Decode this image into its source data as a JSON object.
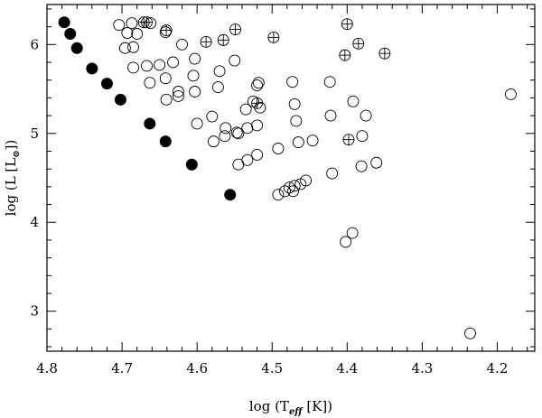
{
  "chart_data": {
    "type": "scatter",
    "xlabel": {
      "main": "log (T",
      "sub": "eff",
      "post": " [K])"
    },
    "ylabel": {
      "main": "log (L [L",
      "sub": "⊙",
      "post": "])"
    },
    "xlim": [
      4.8,
      4.15
    ],
    "ylim": [
      2.55,
      6.45
    ],
    "x_ticks": [
      4.8,
      4.7,
      4.6,
      4.5,
      4.4,
      4.3,
      4.2
    ],
    "x_tick_labels": [
      "4.8",
      "4.7",
      "4.6",
      "4.5",
      "4.4",
      "4.3",
      "4.2"
    ],
    "y_ticks": [
      3,
      4,
      5,
      6
    ],
    "y_tick_labels": [
      "3",
      "4",
      "5",
      "6"
    ],
    "grid": false,
    "series": [
      {
        "marker": "filled-circle",
        "x": [
          4.777,
          4.769,
          4.76,
          4.74,
          4.72,
          4.702,
          4.663,
          4.642,
          4.607,
          4.556
        ],
        "y": [
          6.25,
          6.12,
          5.96,
          5.73,
          5.56,
          5.38,
          5.11,
          4.91,
          4.65,
          4.31
        ]
      },
      {
        "marker": "open-circle",
        "x": [
          4.687,
          4.68,
          4.696,
          4.685,
          4.704,
          4.693,
          4.662,
          4.642,
          4.62,
          4.685,
          4.667,
          4.65,
          4.632,
          4.603,
          4.663,
          4.642,
          4.625,
          4.605,
          4.641,
          4.625,
          4.603,
          4.57,
          4.55,
          4.572,
          4.58,
          4.563,
          4.547,
          4.535,
          4.525,
          4.52,
          4.518,
          4.516,
          4.6,
          4.578,
          4.562,
          4.545,
          4.533,
          4.52,
          4.545,
          4.533,
          4.52,
          4.473,
          4.47,
          4.468,
          4.465,
          4.446,
          4.423,
          4.422,
          4.38,
          4.375,
          4.392,
          4.361,
          4.492,
          4.483,
          4.477,
          4.47,
          4.462,
          4.455,
          4.492,
          4.472,
          4.42,
          4.402,
          4.393,
          4.381,
          4.236,
          4.182
        ],
        "y": [
          6.24,
          6.12,
          5.96,
          5.97,
          6.22,
          6.13,
          6.24,
          6.14,
          6.0,
          5.74,
          5.76,
          5.77,
          5.8,
          5.84,
          5.57,
          5.62,
          5.47,
          5.65,
          5.38,
          5.42,
          5.47,
          5.7,
          5.82,
          5.52,
          5.19,
          4.97,
          5.01,
          5.27,
          5.36,
          5.54,
          5.57,
          5.29,
          5.11,
          4.91,
          5.06,
          4.65,
          4.7,
          4.76,
          5.0,
          5.06,
          5.09,
          5.58,
          5.33,
          5.14,
          4.9,
          4.92,
          5.58,
          5.2,
          4.97,
          5.2,
          5.36,
          4.67,
          4.83,
          4.35,
          4.39,
          4.41,
          4.43,
          4.47,
          4.31,
          4.35,
          4.55,
          3.78,
          3.88,
          4.63,
          2.75,
          5.44
        ]
      },
      {
        "marker": "crossed-circle",
        "x": [
          4.671,
          4.667,
          4.641,
          4.588,
          4.565,
          4.549,
          4.498,
          4.52,
          4.4,
          4.403,
          4.398,
          4.385,
          4.35
        ],
        "y": [
          6.25,
          6.25,
          6.16,
          6.03,
          6.05,
          6.17,
          6.08,
          5.34,
          6.23,
          5.88,
          4.93,
          6.01,
          5.9
        ]
      }
    ]
  }
}
